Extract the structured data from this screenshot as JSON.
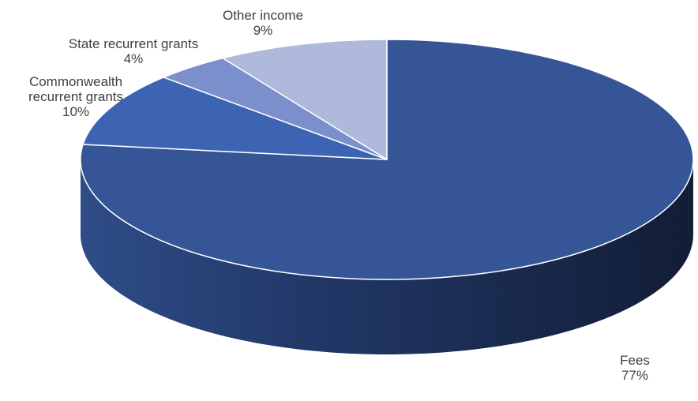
{
  "chart_data": {
    "type": "pie",
    "style": "3d",
    "legend": "none",
    "slices": [
      {
        "name": "Fees",
        "value": 77,
        "label": "77%",
        "color": "#355597"
      },
      {
        "name": "Commonwealth recurrent grants",
        "value": 10,
        "label": "10%",
        "color": "#3d64b3"
      },
      {
        "name": "State recurrent grants",
        "value": 4,
        "label": "4%",
        "color": "#7a8fcc"
      },
      {
        "name": "Other income",
        "value": 9,
        "label": "9%",
        "color": "#aeb9dc"
      }
    ]
  }
}
